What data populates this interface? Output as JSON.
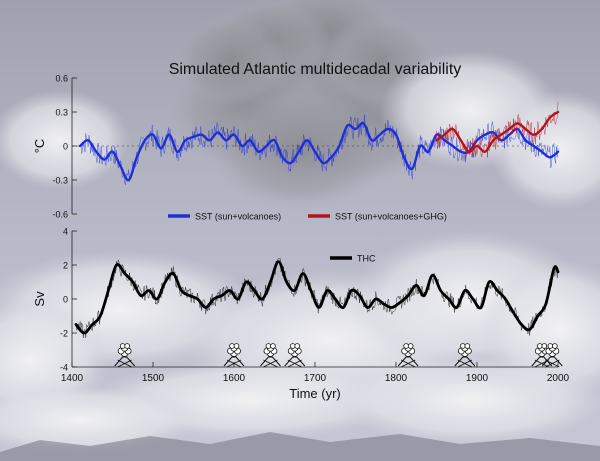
{
  "chart_data": [
    {
      "type": "line",
      "title": "Simulated Atlantic multidecadal variability",
      "ylabel": "°C",
      "xlim": [
        1400,
        2000
      ],
      "ylim": [
        -0.6,
        0.6
      ],
      "yticks": [
        "0.6",
        "0.3",
        "0",
        "-0.3",
        "-0.6"
      ],
      "legend_placement": "bottom-center",
      "series": [
        {
          "name": "SST (sun+volcanoes)",
          "color": "#1f2fd6",
          "x": [
            1410,
            1420,
            1430,
            1440,
            1450,
            1460,
            1470,
            1480,
            1490,
            1500,
            1510,
            1520,
            1530,
            1540,
            1550,
            1560,
            1570,
            1580,
            1590,
            1600,
            1610,
            1620,
            1630,
            1640,
            1650,
            1660,
            1670,
            1680,
            1690,
            1700,
            1710,
            1720,
            1730,
            1740,
            1750,
            1760,
            1770,
            1780,
            1790,
            1800,
            1810,
            1820,
            1830,
            1840,
            1850,
            1860,
            1870,
            1880,
            1890,
            1900,
            1910,
            1920,
            1930,
            1940,
            1950,
            1960,
            1970,
            1980,
            1990,
            2000
          ],
          "values": [
            0.0,
            0.05,
            -0.05,
            -0.12,
            -0.05,
            -0.18,
            -0.3,
            -0.1,
            0.05,
            0.1,
            -0.02,
            0.1,
            -0.05,
            0.05,
            0.08,
            0.1,
            0.05,
            0.12,
            0.05,
            0.1,
            0.0,
            0.05,
            -0.05,
            0.0,
            0.05,
            -0.1,
            -0.15,
            -0.05,
            0.05,
            -0.05,
            -0.15,
            -0.1,
            0.0,
            0.18,
            0.15,
            0.2,
            0.05,
            0.1,
            0.15,
            0.1,
            -0.1,
            -0.2,
            0.0,
            -0.05,
            0.1,
            0.05,
            0.0,
            -0.05,
            -0.05,
            0.05,
            0.1,
            0.12,
            0.05,
            0.1,
            0.15,
            0.05,
            0.0,
            -0.05,
            -0.1,
            -0.05
          ]
        },
        {
          "name": "SST (sun+volcanoes+GHG)",
          "color": "#b3141c",
          "x": [
            1850,
            1860,
            1870,
            1880,
            1890,
            1900,
            1910,
            1920,
            1930,
            1940,
            1950,
            1960,
            1970,
            1980,
            1990,
            2000
          ],
          "values": [
            0.05,
            0.1,
            0.15,
            0.05,
            -0.05,
            0.0,
            -0.05,
            0.05,
            0.1,
            0.15,
            0.2,
            0.15,
            0.1,
            0.15,
            0.25,
            0.3
          ]
        }
      ]
    },
    {
      "type": "line",
      "xlabel": "Time (yr)",
      "ylabel": "Sv",
      "xlim": [
        1400,
        2000
      ],
      "ylim": [
        -4,
        4
      ],
      "xticks": [
        "1400",
        "1500",
        "1600",
        "1700",
        "1800",
        "1900",
        "2000"
      ],
      "yticks": [
        "4",
        "2",
        "0",
        "-2",
        "-4"
      ],
      "legend_placement": "top-center",
      "series": [
        {
          "name": "THC",
          "color": "#000000",
          "x": [
            1405,
            1415,
            1425,
            1435,
            1445,
            1455,
            1465,
            1475,
            1485,
            1495,
            1505,
            1515,
            1525,
            1535,
            1545,
            1555,
            1565,
            1575,
            1585,
            1595,
            1605,
            1615,
            1625,
            1635,
            1645,
            1655,
            1665,
            1675,
            1685,
            1695,
            1705,
            1715,
            1725,
            1735,
            1745,
            1755,
            1765,
            1775,
            1785,
            1795,
            1805,
            1815,
            1825,
            1835,
            1845,
            1855,
            1865,
            1875,
            1885,
            1895,
            1905,
            1915,
            1925,
            1935,
            1945,
            1955,
            1965,
            1975,
            1985,
            1995,
            2000
          ],
          "values": [
            -1.5,
            -2.0,
            -1.5,
            -1.0,
            0.5,
            2.0,
            1.5,
            1.0,
            0.2,
            0.5,
            0.0,
            1.0,
            1.5,
            0.5,
            0.2,
            0.0,
            -0.5,
            0.0,
            0.2,
            0.5,
            0.0,
            1.0,
            0.5,
            0.0,
            1.0,
            2.2,
            1.0,
            0.5,
            1.5,
            0.5,
            -0.5,
            0.5,
            0.0,
            -0.5,
            0.5,
            0.2,
            -0.5,
            0.0,
            -0.3,
            -0.5,
            -0.2,
            0.2,
            0.8,
            0.2,
            1.4,
            0.5,
            0.0,
            -0.5,
            0.5,
            0.0,
            -0.5,
            1.0,
            0.5,
            0.0,
            -0.8,
            -1.5,
            -1.8,
            -1.0,
            -0.3,
            1.8,
            1.6
          ]
        }
      ]
    }
  ],
  "volcano_markers": [
    1465,
    1600,
    1645,
    1675,
    1815,
    1885,
    1980,
    1993
  ],
  "colors": {
    "background": "#c9cbd6",
    "sky": "#b9bccb",
    "cloud": "#eeeff3"
  }
}
